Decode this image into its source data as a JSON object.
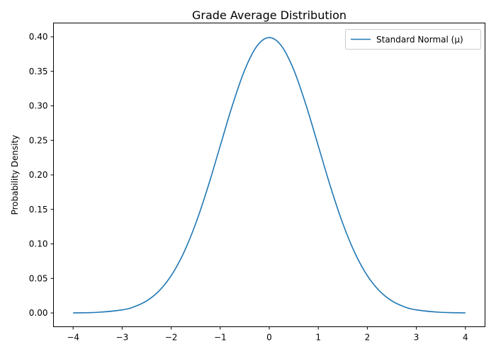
{
  "chart_data": {
    "type": "line",
    "title": "Grade Average Distribution",
    "xlabel": "",
    "ylabel": "Probability Density",
    "xlim": [
      -4.4,
      4.4
    ],
    "ylim": [
      -0.02,
      0.42
    ],
    "xticks": [
      -4,
      -3,
      -2,
      -1,
      0,
      1,
      2,
      3,
      4
    ],
    "xtick_labels": [
      "−4",
      "−3",
      "−2",
      "−1",
      "0",
      "1",
      "2",
      "3",
      "4"
    ],
    "yticks": [
      0.0,
      0.05,
      0.1,
      0.15,
      0.2,
      0.25,
      0.3,
      0.35,
      0.4
    ],
    "ytick_labels": [
      "0.00",
      "0.05",
      "0.10",
      "0.15",
      "0.20",
      "0.25",
      "0.30",
      "0.35",
      "0.40"
    ],
    "grid": false,
    "legend_position": "top-right",
    "series": [
      {
        "name": "Standard Normal (μ)",
        "color": "#1f77b4",
        "x": [
          -4.0,
          -3.5,
          -3.0,
          -2.75,
          -2.5,
          -2.25,
          -2.0,
          -1.75,
          -1.5,
          -1.25,
          -1.0,
          -0.75,
          -0.5,
          -0.25,
          0.0,
          0.25,
          0.5,
          0.75,
          1.0,
          1.25,
          1.5,
          1.75,
          2.0,
          2.25,
          2.5,
          2.75,
          3.0,
          3.5,
          4.0
        ],
        "y": [
          0.0001,
          0.0009,
          0.0044,
          0.0091,
          0.0175,
          0.0317,
          0.054,
          0.0863,
          0.1295,
          0.1826,
          0.242,
          0.3011,
          0.3521,
          0.3867,
          0.3989,
          0.3867,
          0.3521,
          0.3011,
          0.242,
          0.1826,
          0.1295,
          0.0863,
          0.054,
          0.0317,
          0.0175,
          0.0091,
          0.0044,
          0.0009,
          0.0001
        ]
      }
    ]
  }
}
